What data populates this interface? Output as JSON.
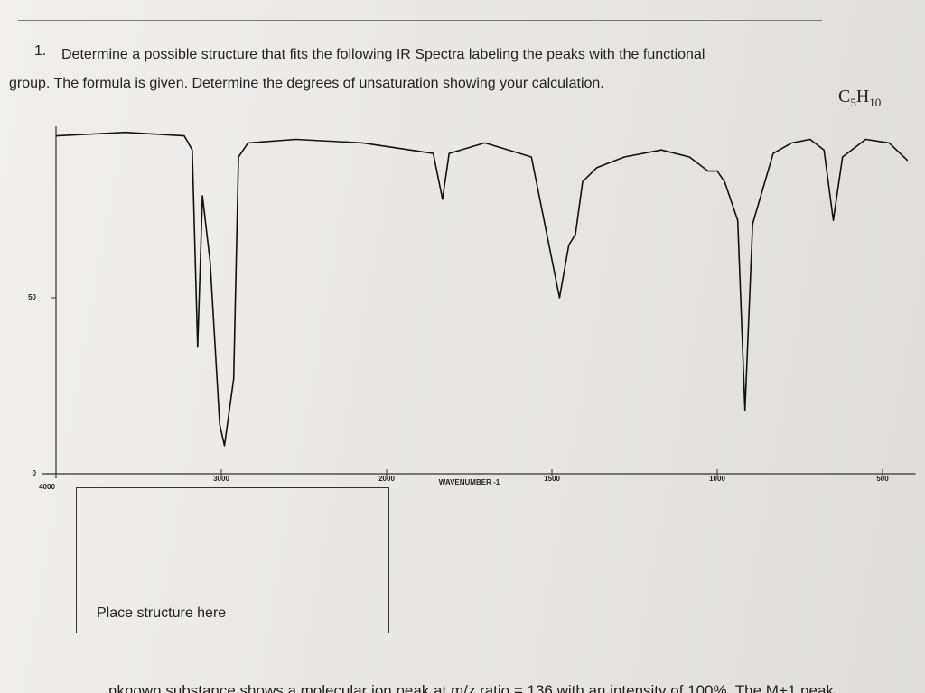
{
  "question": {
    "number": "1.",
    "line1": "Determine a possible structure that fits the following IR Spectra labeling the peaks with the functional",
    "line2": "group. The formula is given. Determine the degrees of unsaturation showing your calculation.",
    "formula": {
      "element1": "C",
      "count1": "5",
      "element2": "H",
      "count2": "10"
    }
  },
  "chart_data": {
    "type": "line",
    "xlabel": "WAVENUMBER -1",
    "color": "#111111",
    "xlim": [
      4000,
      400
    ],
    "xticks": [
      4000,
      3000,
      2000,
      1500,
      1000,
      500
    ],
    "ylim": [
      0,
      100
    ],
    "yticks": [
      0,
      50
    ],
    "x": [
      4000,
      3581,
      3224,
      3176,
      3143,
      3114,
      3067,
      3010,
      2981,
      2925,
      2896,
      2838,
      2549,
      2145,
      1859,
      1831,
      1811,
      1703,
      1562,
      1477,
      1449,
      1429,
      1407,
      1364,
      1281,
      1169,
      1084,
      1028,
      1000,
      978,
      938,
      916,
      893,
      831,
      775,
      719,
      677,
      649,
      621,
      551,
      480,
      424
    ],
    "values": [
      96,
      97,
      96,
      92,
      36,
      79,
      60,
      14,
      8,
      27,
      90,
      94,
      95,
      94,
      91,
      78,
      91,
      94,
      90,
      50,
      65,
      68,
      83,
      87,
      90,
      92,
      90,
      86,
      86,
      83,
      72,
      18,
      71,
      91,
      94,
      95,
      92,
      72,
      90,
      95,
      94,
      89
    ]
  },
  "structure_box": {
    "label": "Place structure here"
  },
  "next_question": "nknown substance shows a molecular ion peak at m/z ratio = 136 with an intensity of 100%. The M+1 peak"
}
